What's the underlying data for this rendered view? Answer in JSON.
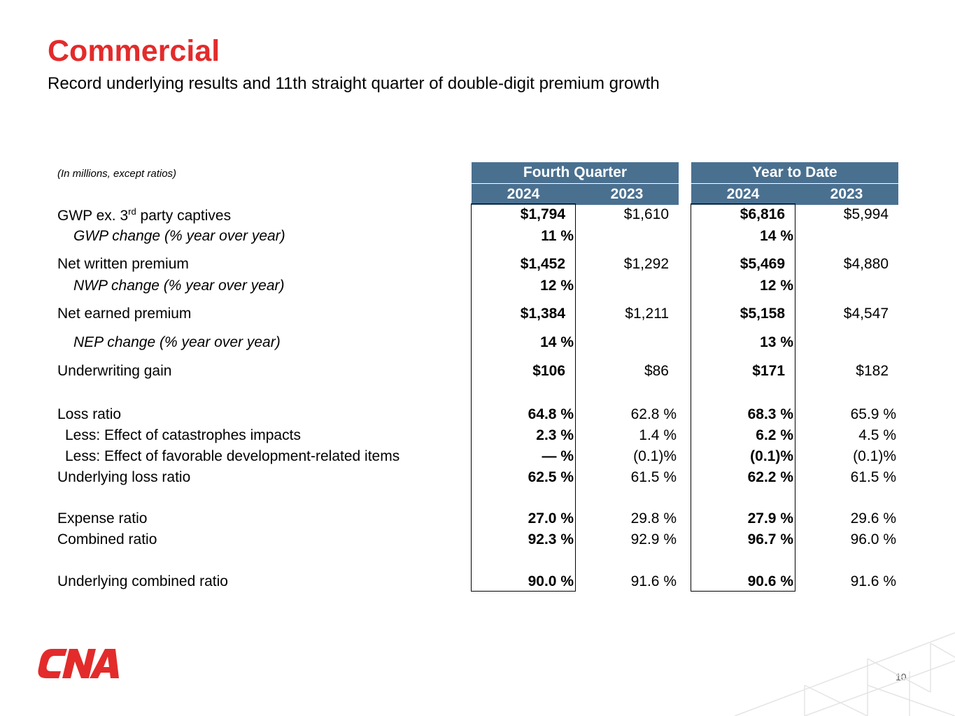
{
  "header": {
    "title": "Commercial",
    "subtitle": "Record underlying results and 11th straight quarter of double-digit premium growth"
  },
  "table": {
    "units_note": "(In millions, except ratios)",
    "groups": [
      "Fourth Quarter",
      "Year to Date"
    ],
    "years": [
      "2024",
      "2023",
      "2024",
      "2023"
    ],
    "rows": [
      {
        "label": "GWP ex. 3",
        "label_sup": "rd",
        "label_after": " party captives",
        "italic": false,
        "values": [
          "$1,794",
          "$1,610",
          "$6,816",
          "$5,994"
        ],
        "align": "dollar"
      },
      {
        "label": "GWP change (% year over year)",
        "italic": true,
        "values": [
          "11 %",
          "",
          "14 %",
          ""
        ],
        "align": "pct"
      },
      {
        "label": "Net written premium",
        "italic": false,
        "values": [
          "$1,452",
          "$1,292",
          "$5,469",
          "$4,880"
        ],
        "align": "dollar"
      },
      {
        "label": "NWP change (% year over year)",
        "italic": true,
        "values": [
          "12 %",
          "",
          "12 %",
          ""
        ],
        "align": "pct"
      },
      {
        "label": "Net earned premium",
        "italic": false,
        "values": [
          "$1,384",
          "$1,211",
          "$5,158",
          "$4,547"
        ],
        "align": "dollar"
      },
      {
        "label": "NEP change (% year over year)",
        "italic": true,
        "values": [
          "14 %",
          "",
          "13 %",
          ""
        ],
        "align": "pct"
      },
      {
        "label": "Underwriting gain",
        "italic": false,
        "values": [
          "$106",
          "$86",
          "$171",
          "$182"
        ],
        "align": "dollar"
      },
      {
        "label": "Loss ratio",
        "italic": false,
        "values": [
          "64.8 %",
          "62.8 %",
          "68.3 %",
          "65.9 %"
        ],
        "align": "pct"
      },
      {
        "label": "Less: Effect of catastrophes impacts",
        "italic": false,
        "values": [
          "2.3 %",
          "1.4 %",
          "6.2 %",
          "4.5 %"
        ],
        "align": "pct"
      },
      {
        "label": "Less: Effect of favorable development-related items",
        "italic": false,
        "values": [
          "— %",
          "(0.1)%",
          "(0.1)%",
          "(0.1)%"
        ],
        "align": "pct"
      },
      {
        "label": "Underlying loss ratio",
        "italic": false,
        "values": [
          "62.5 %",
          "61.5 %",
          "62.2 %",
          "61.5 %"
        ],
        "align": "pct"
      },
      {
        "label": "Expense ratio",
        "italic": false,
        "values": [
          "27.0 %",
          "29.8 %",
          "27.9 %",
          "29.6 %"
        ],
        "align": "pct"
      },
      {
        "label": "Combined ratio",
        "italic": false,
        "values": [
          "92.3 %",
          "92.9 %",
          "96.7 %",
          "96.0 %"
        ],
        "align": "pct"
      },
      {
        "label": "Underlying combined ratio",
        "italic": false,
        "values": [
          "90.0 %",
          "91.6 %",
          "90.6 %",
          "91.6 %"
        ],
        "align": "pct"
      }
    ]
  },
  "footer": {
    "logo_text": "CNA",
    "page_number": "10"
  },
  "colors": {
    "title": "#e32b2b",
    "header_fill": "#4a7090",
    "logo": "#e32b2b"
  }
}
